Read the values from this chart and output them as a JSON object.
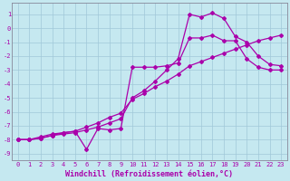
{
  "xlabel": "Windchill (Refroidissement éolien,°C)",
  "xlim": [
    -0.5,
    23.5
  ],
  "ylim": [
    -9.5,
    1.8
  ],
  "yticks": [
    1,
    0,
    -1,
    -2,
    -3,
    -4,
    -5,
    -6,
    -7,
    -8,
    -9
  ],
  "xticks": [
    0,
    1,
    2,
    3,
    4,
    5,
    6,
    7,
    8,
    9,
    10,
    11,
    12,
    13,
    14,
    15,
    16,
    17,
    18,
    19,
    20,
    21,
    22,
    23
  ],
  "bg_color": "#c5e8f0",
  "grid_color": "#a0c8d8",
  "line_color": "#aa00aa",
  "line1_x": [
    0,
    1,
    2,
    3,
    4,
    5,
    6,
    7,
    8,
    9,
    10,
    11,
    12,
    13,
    14,
    15,
    16,
    17,
    18,
    19,
    20,
    21,
    22,
    23
  ],
  "line1_y": [
    -8,
    -8,
    -7.9,
    -7.7,
    -7.6,
    -7.5,
    -7.3,
    -7.1,
    -6.8,
    -6.5,
    -5.0,
    -4.5,
    -3.8,
    -3.0,
    -2.2,
    1.0,
    0.8,
    1.1,
    0.7,
    -0.6,
    -1.0,
    -2.0,
    -2.6,
    -2.7
  ],
  "line2_x": [
    0,
    1,
    2,
    3,
    4,
    5,
    6,
    7,
    8,
    9,
    10,
    11,
    12,
    13,
    14,
    15,
    16,
    17,
    18,
    19,
    20,
    21,
    22,
    23
  ],
  "line2_y": [
    -8,
    -8,
    -7.8,
    -7.6,
    -7.5,
    -7.4,
    -7.1,
    -6.8,
    -6.4,
    -6.1,
    -5.1,
    -4.7,
    -4.2,
    -3.8,
    -3.3,
    -2.7,
    -2.4,
    -2.1,
    -1.8,
    -1.5,
    -1.2,
    -0.9,
    -0.7,
    -0.5
  ],
  "line3_x": [
    0,
    1,
    2,
    3,
    4,
    5,
    6,
    7,
    8,
    9,
    10,
    11,
    12,
    13,
    14,
    15,
    16,
    17,
    18,
    19,
    20,
    21,
    22,
    23
  ],
  "line3_y": [
    -8,
    -8,
    -7.9,
    -7.7,
    -7.5,
    -7.4,
    -8.7,
    -7.2,
    -7.3,
    -7.2,
    -2.8,
    -2.8,
    -2.8,
    -2.7,
    -2.5,
    -0.7,
    -0.7,
    -0.5,
    -0.9,
    -0.9,
    -2.2,
    -2.8,
    -3.0,
    -3.0
  ],
  "marker": "D",
  "markersize": 2.0,
  "linewidth": 0.9,
  "tick_fontsize": 5.0,
  "xlabel_fontsize": 6.0,
  "font_family": "monospace"
}
